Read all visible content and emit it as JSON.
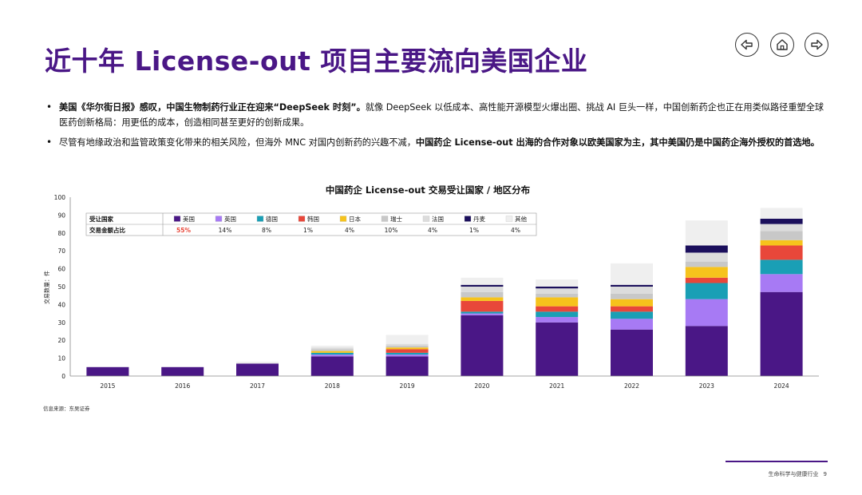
{
  "header": {
    "title": "近十年 License-out 项目主要流向美国企业"
  },
  "nav": {
    "back_icon": "arrow-left-icon",
    "home_icon": "home-icon",
    "forward_icon": "arrow-right-icon"
  },
  "bullets": [
    {
      "bold_lead": "美国《华尔街日报》感叹，中国生物制药行业正在迎来“DeepSeek 时刻”。",
      "text": "就像 DeepSeek 以低成本、高性能开源模型火爆出圈、挑战 AI 巨头一样，中国创新药企也正在用类似路径重塑全球医药创新格局：用更低的成本，创造相同甚至更好的创新成果。"
    },
    {
      "text": "尽管有地缘政治和监管政策变化带来的相关风险，但海外 MNC 对国内创新药的兴趣不减，",
      "bold_tail": "中国药企 License-out 出海的合作对象以欧美国家为主，其中美国仍是中国药企海外授权的首选地。"
    }
  ],
  "source": "信息来源：东吴证券",
  "footer": {
    "text": "生命科学与健康行业",
    "page": "9"
  },
  "colors": {
    "brand": "#4a1786",
    "highlight": "#e8473a"
  },
  "chart_data": {
    "type": "bar",
    "stacked": true,
    "title": "中国药企 License-out 交易受让国家 / 地区分布",
    "ylabel": "交易数量：件",
    "xlabel": "",
    "ylim": [
      0,
      100
    ],
    "yticks": [
      0,
      10,
      20,
      30,
      40,
      50,
      60,
      70,
      80,
      90,
      100
    ],
    "grid": false,
    "categories": [
      "2015",
      "2016",
      "2017",
      "2018",
      "2019",
      "2020",
      "2021",
      "2022",
      "2023",
      "2024"
    ],
    "series": [
      {
        "name": "美国",
        "color": "#4a1786",
        "share": "55%",
        "values": [
          5,
          5,
          7,
          11,
          11,
          34,
          30,
          26,
          28,
          47
        ]
      },
      {
        "name": "英国",
        "color": "#a77af4",
        "share": "14%",
        "values": [
          0,
          0,
          0,
          1,
          1,
          1,
          3,
          6,
          15,
          10
        ]
      },
      {
        "name": "德国",
        "color": "#1a9fb5",
        "share": "8%",
        "values": [
          0,
          0,
          0,
          1,
          1,
          1,
          3,
          4,
          9,
          8
        ]
      },
      {
        "name": "韩国",
        "color": "#e8473a",
        "share": "1%",
        "values": [
          0,
          0,
          0,
          0,
          2,
          6,
          3,
          3,
          3,
          8
        ]
      },
      {
        "name": "日本",
        "color": "#f6c31c",
        "share": "4%",
        "values": [
          0,
          0,
          0,
          1,
          1,
          2,
          5,
          4,
          6,
          3
        ]
      },
      {
        "name": "瑞士",
        "color": "#c8c8c8",
        "share": "10%",
        "values": [
          0,
          0,
          0,
          1,
          1,
          3,
          2,
          3,
          3,
          5
        ]
      },
      {
        "name": "法国",
        "color": "#dcdcdc",
        "share": "4%",
        "values": [
          0,
          0,
          0,
          1,
          1,
          3,
          3,
          4,
          5,
          4
        ]
      },
      {
        "name": "丹麦",
        "color": "#1b0f5c",
        "share": "1%",
        "values": [
          0,
          0,
          0,
          0,
          0,
          1,
          1,
          1,
          4,
          3
        ]
      },
      {
        "name": "其他",
        "color": "#efefef",
        "share": "4%",
        "values": [
          0,
          0,
          1,
          1,
          5,
          4,
          4,
          12,
          14,
          6
        ]
      }
    ],
    "legend_table": {
      "row1_label": "受让国家",
      "row2_label": "交易金额占比",
      "placement": "top-left"
    }
  }
}
